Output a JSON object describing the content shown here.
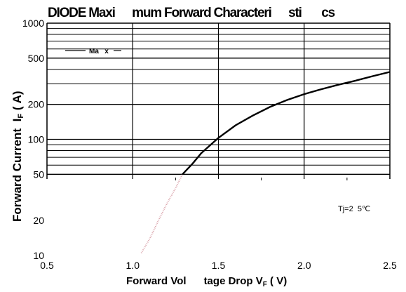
{
  "chart_data": {
    "type": "line",
    "title": "DIODE Maxi      mum Forward Characteri      sti       cs",
    "xlabel": "Forward Vol      tage Drop V",
    "xlabel_sub": "F",
    "xlabel_unit": " ( V)",
    "ylabel": "Forward Current  I",
    "ylabel_sub": "F",
    "ylabel_unit": " ( A)",
    "x_scale": "linear",
    "y_scale": "log",
    "xlim": [
      0.5,
      2.5
    ],
    "ylim": [
      10,
      1000
    ],
    "x_ticks": [
      0.5,
      1.0,
      1.5,
      2.0,
      2.5
    ],
    "x_tick_labels": [
      "0.5",
      "1.0",
      "1.5",
      "2.0",
      "2.5"
    ],
    "y_ticks": [
      10,
      20,
      50,
      100,
      200,
      500,
      1000
    ],
    "y_tick_labels": [
      "10",
      "20",
      "50",
      "100",
      "200",
      "500",
      "1000"
    ],
    "grid": true,
    "grid_region_min_y": 50,
    "legend": [
      {
        "label": "Ma   x",
        "placement": "top-left"
      }
    ],
    "annotations": [
      {
        "text": "Tj=2  5℃"
      }
    ],
    "series": [
      {
        "name": "Ma   x",
        "color": "#000000",
        "solid_from_x": 1.29,
        "x": [
          1.05,
          1.1,
          1.15,
          1.2,
          1.25,
          1.29,
          1.35,
          1.4,
          1.5,
          1.6,
          1.7,
          1.8,
          1.9,
          2.0,
          2.1,
          2.2,
          2.3,
          2.4,
          2.5
        ],
        "y": [
          10.5,
          14,
          20,
          28,
          38,
          50,
          62,
          76,
          103,
          132,
          160,
          190,
          218,
          245,
          270,
          295,
          320,
          350,
          380
        ]
      }
    ]
  }
}
